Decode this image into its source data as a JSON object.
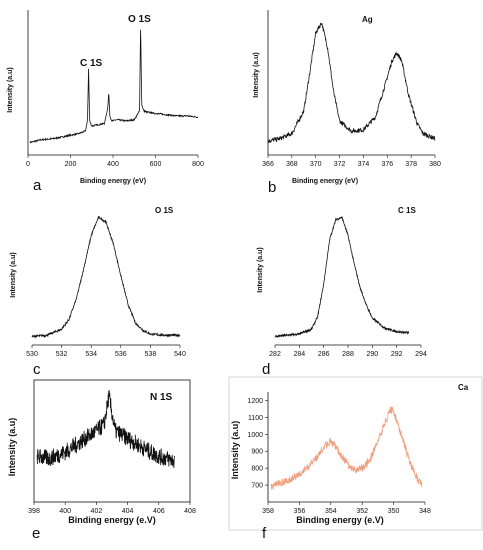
{
  "chart_data": [
    {
      "panel": "a",
      "type": "line",
      "xlabel": "Binding energy (eV)",
      "ylabel": "Intensity (a.u)",
      "xlim": [
        0,
        800
      ],
      "xticks": [
        "0",
        "200",
        "400",
        "600",
        "800"
      ],
      "annotations": [
        "C 1S",
        "O 1S"
      ],
      "series": [
        {
          "x": [
            10,
            60,
            120,
            180,
            240,
            270,
            280,
            285,
            290,
            300,
            330,
            360,
            375,
            380,
            385,
            395,
            420,
            460,
            500,
            525,
            530,
            535,
            545,
            560,
            600,
            650,
            700,
            750,
            800
          ],
          "y": [
            0.05,
            0.07,
            0.08,
            0.1,
            0.12,
            0.14,
            0.22,
            0.64,
            0.22,
            0.18,
            0.19,
            0.2,
            0.32,
            0.45,
            0.26,
            0.22,
            0.23,
            0.22,
            0.23,
            0.3,
            1.0,
            0.35,
            0.3,
            0.29,
            0.28,
            0.27,
            0.26,
            0.26,
            0.25
          ]
        }
      ]
    },
    {
      "panel": "b",
      "type": "line",
      "xlabel": "Binding energy (eV)",
      "ylabel": "Intensity (a.u)",
      "xlim": [
        366,
        380
      ],
      "xticks": [
        "366",
        "368",
        "370",
        "372",
        "374",
        "376",
        "378",
        "380"
      ],
      "annotations": [
        "Ag"
      ],
      "series": [
        {
          "x": [
            366,
            367,
            368,
            369,
            369.5,
            370,
            370.5,
            371,
            371.5,
            372,
            373,
            374,
            375,
            375.8,
            376.4,
            376.8,
            377.2,
            377.8,
            378.5,
            379,
            380
          ],
          "y": [
            0.06,
            0.08,
            0.12,
            0.3,
            0.6,
            0.92,
            1.0,
            0.8,
            0.45,
            0.22,
            0.14,
            0.15,
            0.25,
            0.5,
            0.7,
            0.76,
            0.7,
            0.42,
            0.2,
            0.12,
            0.08
          ]
        }
      ]
    },
    {
      "panel": "c",
      "type": "line",
      "ylabel": "Intensity (a.u)",
      "xlim": [
        530,
        540
      ],
      "xticks": [
        "530",
        "532",
        "534",
        "536",
        "538",
        "540"
      ],
      "annotations": [
        "O 1S"
      ],
      "series": [
        {
          "x": [
            530,
            531,
            532,
            532.5,
            533,
            533.5,
            534,
            534.5,
            535,
            535.5,
            536,
            536.5,
            537,
            537.5,
            538,
            539,
            540
          ],
          "y": [
            0.02,
            0.03,
            0.08,
            0.16,
            0.33,
            0.58,
            0.85,
            1.0,
            0.96,
            0.78,
            0.52,
            0.28,
            0.13,
            0.07,
            0.04,
            0.03,
            0.03
          ]
        }
      ]
    },
    {
      "panel": "d",
      "type": "line",
      "ylabel": "Intensity (a.u)",
      "xlim": [
        282,
        294
      ],
      "xticks": [
        "282",
        "284",
        "286",
        "288",
        "290",
        "292",
        "294"
      ],
      "annotations": [
        "C 1S"
      ],
      "series": [
        {
          "x": [
            282,
            283,
            284,
            285,
            285.5,
            286,
            286.5,
            287,
            287.5,
            288,
            288.5,
            289,
            289.5,
            290,
            291,
            292,
            293
          ],
          "y": [
            0.02,
            0.03,
            0.04,
            0.08,
            0.18,
            0.45,
            0.82,
            0.98,
            1.0,
            0.85,
            0.62,
            0.42,
            0.28,
            0.17,
            0.09,
            0.06,
            0.05
          ]
        }
      ]
    },
    {
      "panel": "e",
      "type": "line",
      "xlabel": "Binding energy  (e.V)",
      "ylabel": "Intensity (a.u)",
      "xlim": [
        398,
        408
      ],
      "xticks": [
        "398",
        "400",
        "402",
        "404",
        "406",
        "408"
      ],
      "annotations": [
        "N 1S"
      ],
      "series": [
        {
          "x": [
            398.2,
            399,
            400,
            401,
            402,
            402.5,
            402.8,
            403.2,
            404,
            405,
            406,
            407
          ],
          "y": [
            0.38,
            0.36,
            0.42,
            0.52,
            0.62,
            0.68,
            0.95,
            0.62,
            0.55,
            0.46,
            0.38,
            0.34
          ]
        }
      ]
    },
    {
      "panel": "f",
      "type": "line",
      "xlabel": "Binding energy  (e.V)",
      "ylabel": "Intensity (a.u)",
      "xlim": [
        358,
        348
      ],
      "ylim": [
        600,
        1250
      ],
      "xticks": [
        "358",
        "356",
        "354",
        "352",
        "350",
        "348"
      ],
      "yticks": [
        "700",
        "800",
        "900",
        "1000",
        "1100",
        "1200"
      ],
      "annotations": [
        "Ca"
      ],
      "color": "#f0a080",
      "series": [
        {
          "x": [
            357.8,
            357,
            356,
            355,
            354.5,
            354,
            353.5,
            353,
            352.5,
            352,
            351.5,
            351,
            350.5,
            350.2,
            350,
            349.5,
            349,
            348.5,
            348.2
          ],
          "y": [
            690,
            720,
            760,
            850,
            920,
            960,
            900,
            830,
            790,
            800,
            850,
            960,
            1080,
            1150,
            1130,
            1000,
            840,
            740,
            700
          ]
        }
      ]
    }
  ],
  "panel_letters": [
    "a",
    "b",
    "c",
    "d",
    "e",
    "f"
  ]
}
